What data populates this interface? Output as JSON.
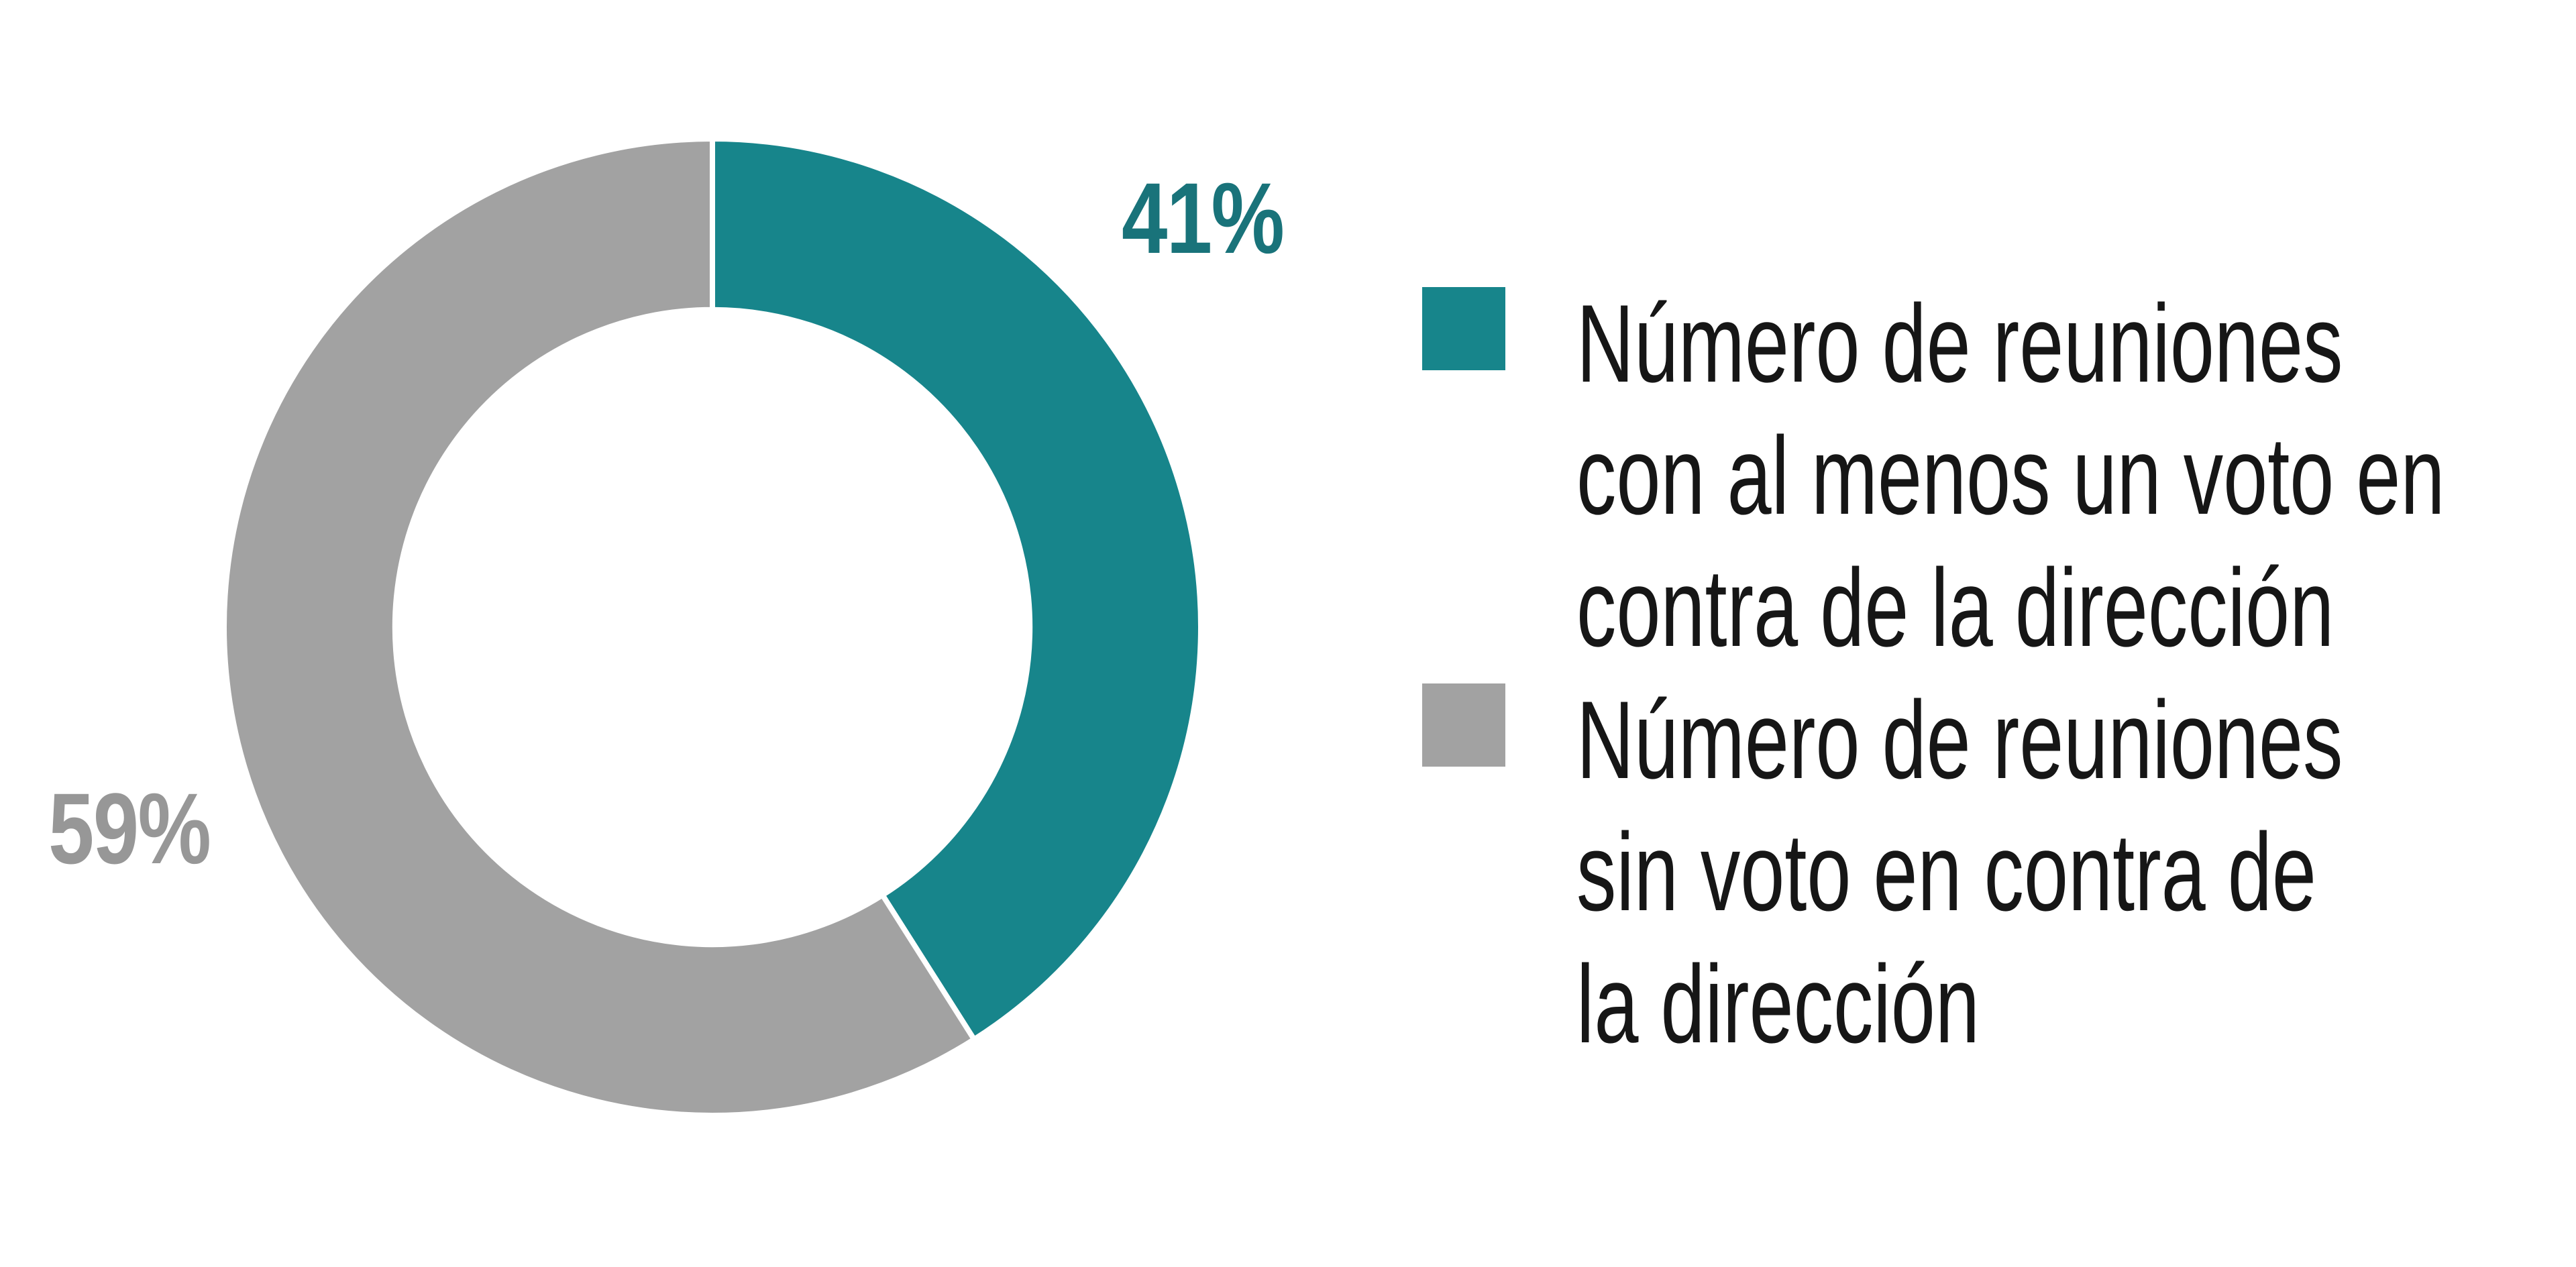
{
  "chart_data": {
    "type": "pie",
    "donut": true,
    "title": "",
    "categories": [
      "Número de reuniones con al menos un voto en contra de la dirección",
      "Número de reuniones sin voto en contra de la dirección"
    ],
    "values": [
      41,
      59
    ],
    "segments": [
      {
        "label": "Número de reuniones con al menos un voto en contra de la dirección",
        "value": 41,
        "percent_label": "41%",
        "color": "#17858B",
        "label_color": "#19737A"
      },
      {
        "label": "Número de reuniones sin voto en contra de la dirección",
        "value": 59,
        "percent_label": "59%",
        "color": "#A2A2A2",
        "label_color": "#979797"
      }
    ],
    "start_angle": "top",
    "direction": "clockwise",
    "inner_radius_ratio": 0.65,
    "separator_color": "#FFFFFF",
    "legend_position": "right",
    "grid": false
  },
  "legend": {
    "items": [
      {
        "swatch_color": "#17858B",
        "lines": [
          "Número de reuniones",
          "con al menos un voto en",
          "contra de la dirección"
        ]
      },
      {
        "swatch_color": "#A2A2A2",
        "lines": [
          "Número de reuniones",
          "sin voto en contra de",
          "la dirección"
        ]
      }
    ]
  },
  "colors": {
    "teal": "#17858B",
    "gray": "#A2A2A2",
    "text": "#161616",
    "background": "#FFFFFF"
  }
}
